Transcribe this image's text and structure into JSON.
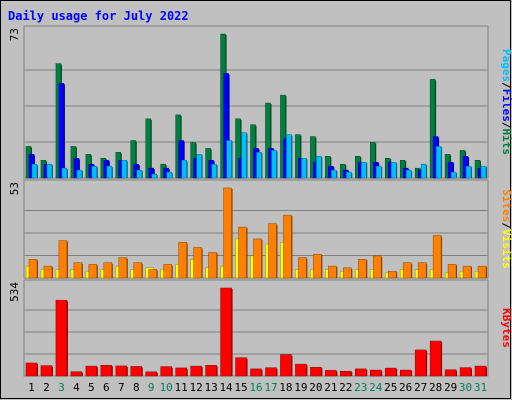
{
  "chart_data": {
    "type": "bar",
    "title": "Daily usage for July 2022",
    "categories": [
      "1",
      "2",
      "3",
      "4",
      "5",
      "6",
      "7",
      "8",
      "9",
      "10",
      "11",
      "12",
      "13",
      "14",
      "15",
      "16",
      "17",
      "18",
      "19",
      "20",
      "21",
      "22",
      "23",
      "24",
      "25",
      "26",
      "27",
      "28",
      "29",
      "30",
      "31"
    ],
    "weekend_days": [
      "3",
      "9",
      "10",
      "16",
      "17",
      "23",
      "24",
      "30",
      "31"
    ],
    "panels": [
      {
        "id": "hits-files-pages",
        "max_label": "73",
        "ylim": [
          0,
          73
        ],
        "side_labels": [
          "Pages",
          "Files",
          "Hits"
        ],
        "series": [
          {
            "name": "Hits",
            "color": "#008040",
            "values": [
              16,
              9,
              58,
              16,
              12,
              10,
              13,
              19,
              30,
              7,
              32,
              18,
              15,
              73,
              30,
              27,
              38,
              42,
              22,
              21,
              11,
              7,
              11,
              18,
              10,
              9,
              5,
              50,
              12,
              14,
              9
            ]
          },
          {
            "name": "Files",
            "color": "#0000ff",
            "values": [
              12,
              7,
              48,
              10,
              7,
              9,
              9,
              7,
              5,
              5,
              19,
              10,
              9,
              53,
              10,
              15,
              15,
              20,
              10,
              8,
              6,
              4,
              8,
              8,
              8,
              5,
              4,
              21,
              8,
              11,
              5
            ]
          },
          {
            "name": "Pages",
            "color": "#00bfff",
            "values": [
              7,
              7,
              5,
              4,
              6,
              6,
              9,
              4,
              2,
              3,
              9,
              12,
              7,
              19,
              23,
              13,
              14,
              22,
              10,
              11,
              4,
              3,
              8,
              6,
              8,
              4,
              7,
              16,
              3,
              6,
              6
            ]
          }
        ]
      },
      {
        "id": "visits-sites",
        "max_label": "53",
        "ylim": [
          0,
          53
        ],
        "side_labels": [
          "Sites",
          "Visits"
        ],
        "series": [
          {
            "name": "Visits",
            "color": "#ffff00",
            "values": [
              7,
              5,
              5,
              5,
              4,
              5,
              7,
              5,
              6,
              5,
              8,
              11,
              6,
              7,
              23,
              13,
              20,
              21,
              5,
              5,
              5,
              4,
              5,
              5,
              3,
              5,
              5,
              5,
              3,
              4,
              4
            ]
          },
          {
            "name": "Sites",
            "color": "#ff8000",
            "values": [
              11,
              7,
              22,
              9,
              8,
              9,
              12,
              9,
              5,
              8,
              21,
              18,
              15,
              53,
              30,
              23,
              32,
              37,
              12,
              14,
              7,
              6,
              11,
              13,
              4,
              9,
              9,
              25,
              8,
              7,
              7
            ]
          }
        ]
      },
      {
        "id": "kbytes",
        "max_label": "534",
        "ylim": [
          0,
          534
        ],
        "side_labels": [
          "KBytes"
        ],
        "series": [
          {
            "name": "KBytes",
            "color": "#ff0000",
            "values": [
              79,
              63,
              460,
              26,
              60,
              65,
              61,
              58,
              25,
              57,
              49,
              60,
              65,
              534,
              111,
              43,
              50,
              129,
              72,
              53,
              34,
              29,
              43,
              36,
              48,
              36,
              158,
              212,
              38,
              51,
              60
            ]
          }
        ]
      }
    ]
  }
}
